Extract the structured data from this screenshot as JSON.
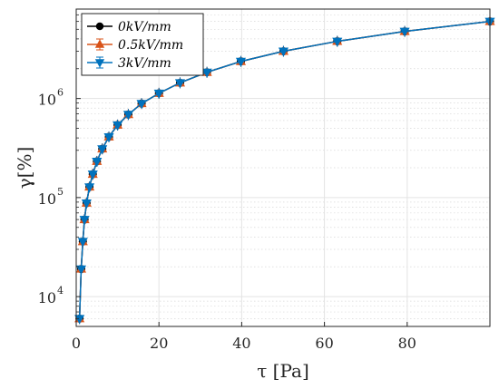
{
  "chart_data": {
    "type": "line",
    "xlabel": "τ [Pa]",
    "ylabel": "γ[%]",
    "xlim": [
      0,
      100
    ],
    "ylim": [
      5000,
      8000000
    ],
    "yscale": "log",
    "grid": true,
    "minor_grid": true,
    "legend_position": "top-left",
    "x_ticks": [
      0,
      20,
      40,
      60,
      80
    ],
    "x_tick_labels": [
      "0",
      "20",
      "40",
      "60",
      "80"
    ],
    "y_ticks": [
      10000,
      100000,
      1000000
    ],
    "y_tick_labels": [
      "10",
      "10",
      "10"
    ],
    "y_tick_exponents": [
      "4",
      "5",
      "6"
    ],
    "x": [
      0.8,
      1.2,
      1.6,
      2.0,
      2.5,
      3.2,
      4.0,
      5.0,
      6.3,
      7.9,
      10.0,
      12.6,
      15.8,
      20.0,
      25.1,
      31.6,
      39.8,
      50.1,
      63.1,
      79.4,
      100.0
    ],
    "series": [
      {
        "name": "0kV/mm",
        "marker": "circle",
        "color": "#000000",
        "values": [
          6000,
          19000,
          36000,
          60000,
          88000,
          128000,
          172000,
          232000,
          310000,
          410000,
          540000,
          690000,
          890000,
          1130000,
          1440000,
          1840000,
          2370000,
          3000000,
          3780000,
          4760000,
          6000000
        ]
      },
      {
        "name": "0.5kV/mm",
        "marker": "triangle-up",
        "color": "#d95319",
        "values": [
          6000,
          19000,
          36000,
          60000,
          88000,
          128000,
          172000,
          232000,
          310000,
          410000,
          540000,
          690000,
          890000,
          1130000,
          1440000,
          1840000,
          2370000,
          3000000,
          3780000,
          4760000,
          6000000
        ]
      },
      {
        "name": "3kV/mm",
        "marker": "triangle-down",
        "color": "#0072bd",
        "values": [
          6000,
          19000,
          36000,
          60000,
          88000,
          128000,
          172000,
          232000,
          310000,
          410000,
          540000,
          690000,
          890000,
          1130000,
          1440000,
          1840000,
          2370000,
          3000000,
          3780000,
          4760000,
          6000000
        ]
      }
    ]
  }
}
